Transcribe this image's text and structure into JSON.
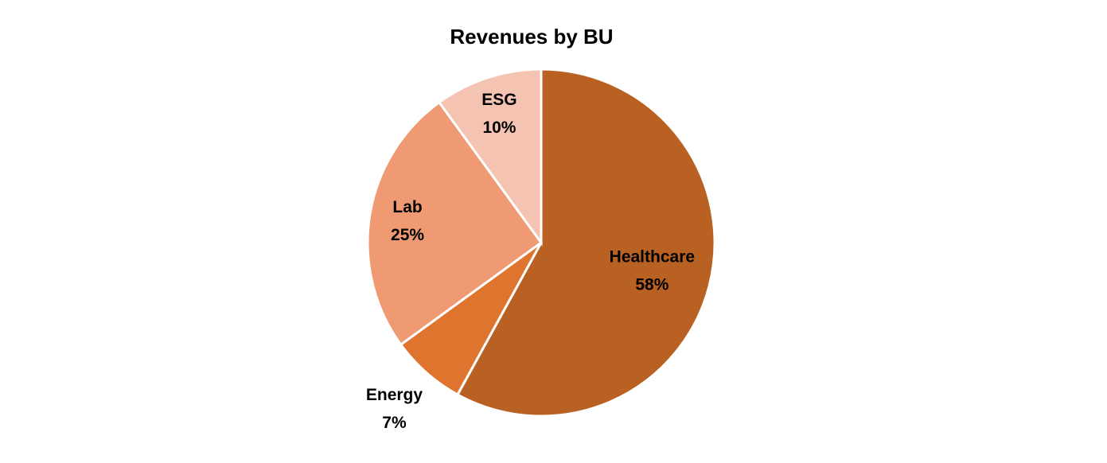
{
  "chart_data": {
    "type": "pie",
    "title": "Revenues by BU",
    "categories": [
      "Healthcare",
      "Energy",
      "Lab",
      "ESG"
    ],
    "values": [
      58,
      7,
      25,
      10
    ],
    "value_labels": [
      "58%",
      "7%",
      "25%",
      "10%"
    ],
    "colors": [
      "#B86122",
      "#DF742E",
      "#EF9A72",
      "#F4C3B2"
    ]
  }
}
